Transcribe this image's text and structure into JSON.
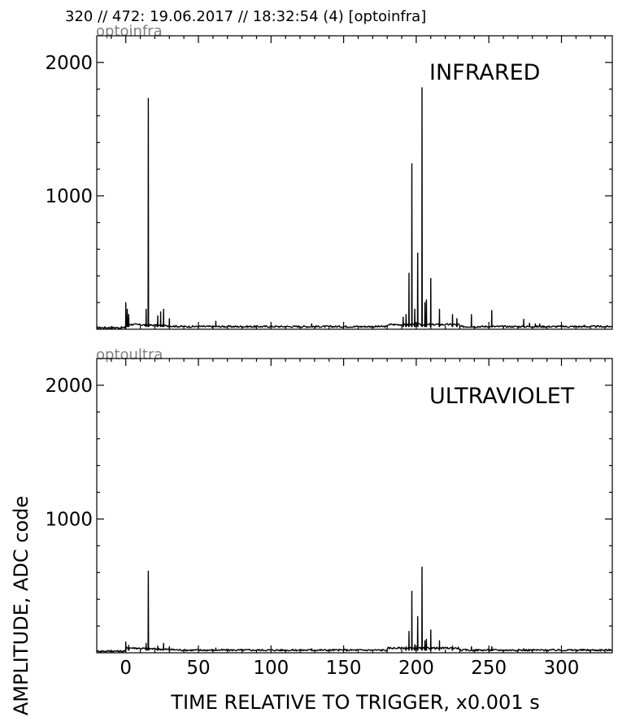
{
  "figure_title": "320 // 472:   19.06.2017 // 18:32:54 (4)  [optoinfra]",
  "xlabel": "TIME RELATIVE TO TRIGGER,   x0.001 s",
  "ylabel": "AMPLITUDE,  ADC code",
  "chart_data": [
    {
      "type": "line",
      "panel_tag": "optoinfra",
      "band_label": "INFRARED",
      "xlim": [
        -20,
        335
      ],
      "ylim": [
        0,
        2200
      ],
      "xticks": [
        0,
        50,
        100,
        150,
        200,
        250,
        300
      ],
      "yticks": [
        1000,
        2000
      ],
      "baseline": 20,
      "peaks": [
        {
          "x": 0,
          "y": 200
        },
        {
          "x": 1,
          "y": 150
        },
        {
          "x": 2,
          "y": 110
        },
        {
          "x": 14,
          "y": 150
        },
        {
          "x": 15.5,
          "y": 1730
        },
        {
          "x": 22,
          "y": 100
        },
        {
          "x": 24,
          "y": 130
        },
        {
          "x": 26,
          "y": 150
        },
        {
          "x": 30,
          "y": 80
        },
        {
          "x": 62,
          "y": 60
        },
        {
          "x": 128,
          "y": 40
        },
        {
          "x": 191,
          "y": 90
        },
        {
          "x": 193,
          "y": 110
        },
        {
          "x": 195,
          "y": 420
        },
        {
          "x": 197,
          "y": 1240
        },
        {
          "x": 199,
          "y": 150
        },
        {
          "x": 201,
          "y": 570
        },
        {
          "x": 204,
          "y": 1810
        },
        {
          "x": 206,
          "y": 200
        },
        {
          "x": 207,
          "y": 220
        },
        {
          "x": 210,
          "y": 380
        },
        {
          "x": 216,
          "y": 150
        },
        {
          "x": 225,
          "y": 110
        },
        {
          "x": 228,
          "y": 80
        },
        {
          "x": 238,
          "y": 110
        },
        {
          "x": 252,
          "y": 140
        },
        {
          "x": 274,
          "y": 75
        },
        {
          "x": 278,
          "y": 45
        },
        {
          "x": 282,
          "y": 40
        },
        {
          "x": 285,
          "y": 40
        },
        {
          "x": 316,
          "y": 30
        }
      ]
    },
    {
      "type": "line",
      "panel_tag": "optoultra",
      "band_label": "ULTRAVIOLET",
      "xlim": [
        -20,
        335
      ],
      "ylim": [
        0,
        2200
      ],
      "xticks": [
        0,
        50,
        100,
        150,
        200,
        250,
        300
      ],
      "yticks": [
        1000,
        2000
      ],
      "baseline": 20,
      "peaks": [
        {
          "x": 0,
          "y": 80
        },
        {
          "x": 2,
          "y": 55
        },
        {
          "x": 14,
          "y": 70
        },
        {
          "x": 15.5,
          "y": 610
        },
        {
          "x": 22,
          "y": 50
        },
        {
          "x": 26,
          "y": 70
        },
        {
          "x": 30,
          "y": 45
        },
        {
          "x": 62,
          "y": 35
        },
        {
          "x": 128,
          "y": 30
        },
        {
          "x": 193,
          "y": 45
        },
        {
          "x": 195,
          "y": 160
        },
        {
          "x": 197,
          "y": 460
        },
        {
          "x": 199,
          "y": 60
        },
        {
          "x": 201,
          "y": 270
        },
        {
          "x": 204,
          "y": 640
        },
        {
          "x": 206,
          "y": 90
        },
        {
          "x": 207,
          "y": 100
        },
        {
          "x": 210,
          "y": 170
        },
        {
          "x": 216,
          "y": 90
        },
        {
          "x": 225,
          "y": 50
        },
        {
          "x": 238,
          "y": 45
        },
        {
          "x": 252,
          "y": 45
        },
        {
          "x": 274,
          "y": 30
        }
      ]
    }
  ]
}
